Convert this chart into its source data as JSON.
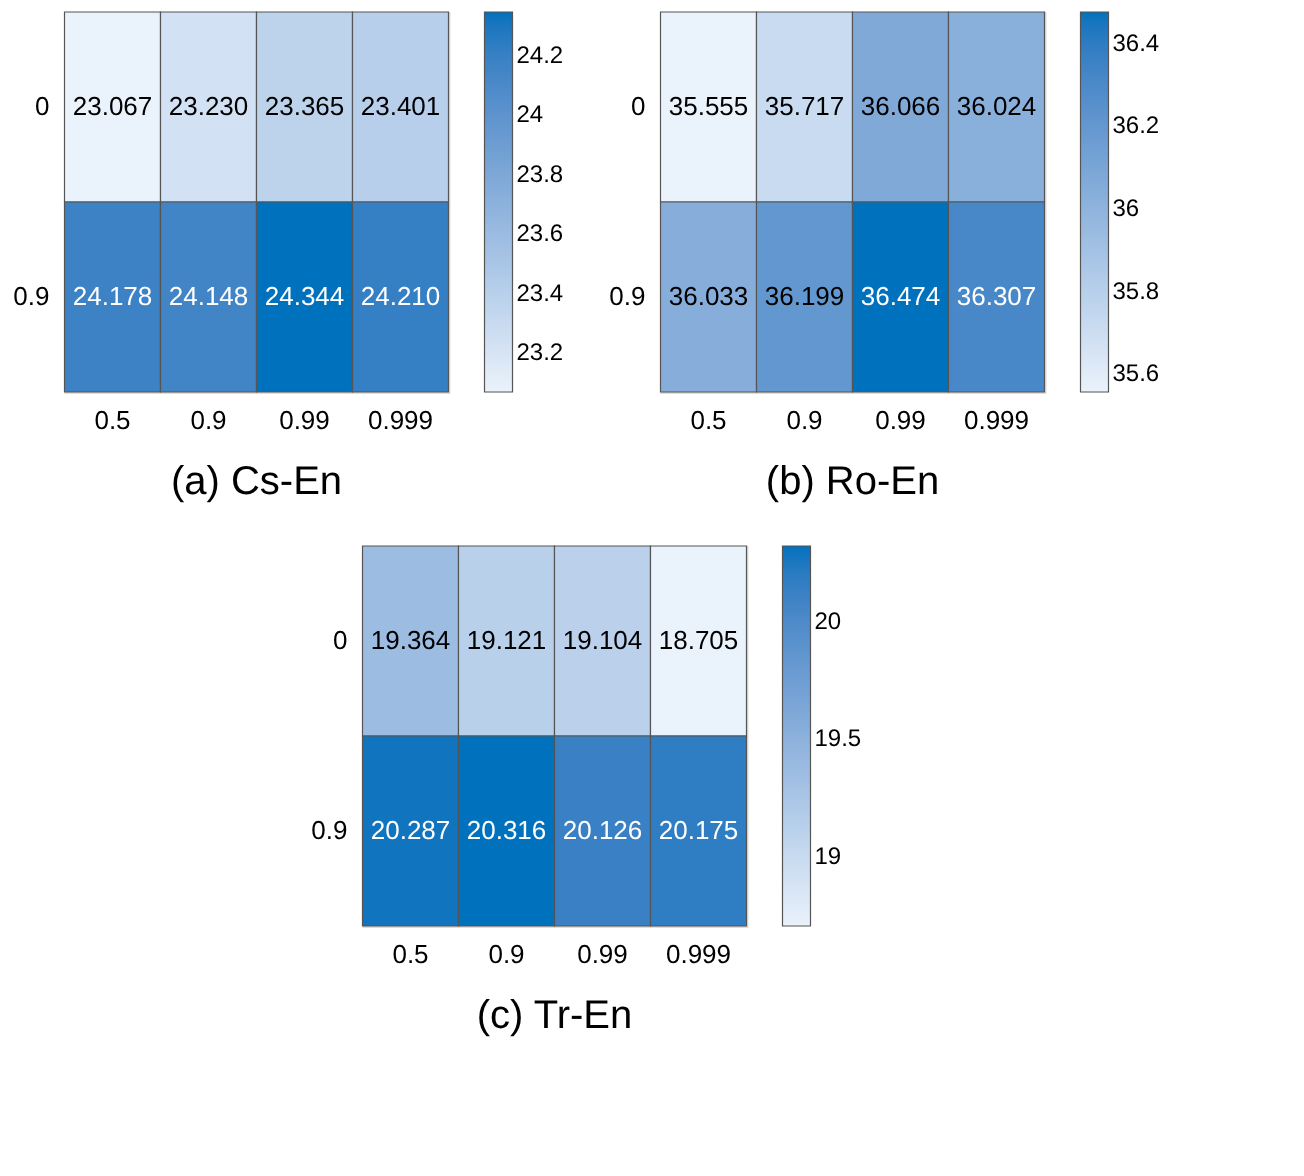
{
  "chart_data": [
    {
      "type": "heatmap",
      "title": "(a) Cs-En",
      "categories": [
        "0.5",
        "0.9",
        "0.99",
        "0.999"
      ],
      "y_categories": [
        "0",
        "0.9"
      ],
      "cells": [
        [
          23.067,
          23.23,
          23.365,
          23.401
        ],
        [
          24.178,
          24.148,
          24.344,
          24.21
        ]
      ],
      "cell_labels": [
        [
          "23.067",
          "23.230",
          "23.365",
          "23.401"
        ],
        [
          "24.178",
          "24.148",
          "24.344",
          "24.210"
        ]
      ],
      "clim": [
        23.067,
        24.344
      ],
      "cticks": [
        23.2,
        23.4,
        23.6,
        23.8,
        24,
        24.2
      ],
      "colors": [
        "#eaf2fb",
        "#0072bd"
      ]
    },
    {
      "type": "heatmap",
      "title": "(b) Ro-En",
      "categories": [
        "0.5",
        "0.9",
        "0.99",
        "0.999"
      ],
      "y_categories": [
        "0",
        "0.9"
      ],
      "cells": [
        [
          35.555,
          35.717,
          36.066,
          36.024
        ],
        [
          36.033,
          36.199,
          36.474,
          36.307
        ]
      ],
      "cell_labels": [
        [
          "35.555",
          "35.717",
          "36.066",
          "36.024"
        ],
        [
          "36.033",
          "36.199",
          "36.474",
          "36.307"
        ]
      ],
      "clim": [
        35.555,
        36.474
      ],
      "cticks": [
        35.6,
        35.8,
        36,
        36.2,
        36.4
      ],
      "colors": [
        "#eaf2fb",
        "#0072bd"
      ]
    },
    {
      "type": "heatmap",
      "title": "(c) Tr-En",
      "categories": [
        "0.5",
        "0.9",
        "0.99",
        "0.999"
      ],
      "y_categories": [
        "0",
        "0.9"
      ],
      "cells": [
        [
          19.364,
          19.121,
          19.104,
          18.705
        ],
        [
          20.287,
          20.316,
          20.126,
          20.175
        ]
      ],
      "cell_labels": [
        [
          "19.364",
          "19.121",
          "19.104",
          "18.705"
        ],
        [
          "20.287",
          "20.316",
          "20.126",
          "20.175"
        ]
      ],
      "clim": [
        18.705,
        20.316
      ],
      "cticks": [
        19,
        19.5,
        20
      ],
      "colors": [
        "#eaf2fb",
        "#0072bd"
      ]
    }
  ]
}
